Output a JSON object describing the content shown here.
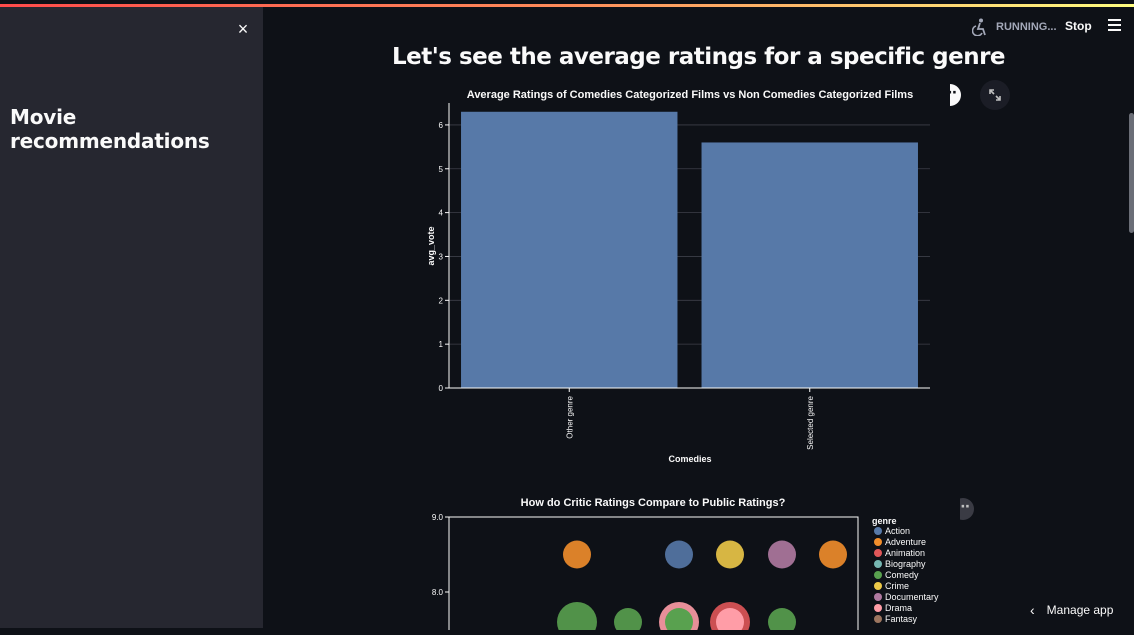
{
  "sidebar": {
    "title": "Movie recommendations",
    "close_label": "×"
  },
  "header": {
    "status": "RUNNING...",
    "stop_label": "Stop"
  },
  "main": {
    "title": "Let's see the average ratings for a specific genre"
  },
  "manage_app": {
    "label": "Manage app",
    "chevron": "‹"
  },
  "icons": {
    "running": "accessibility-running-icon",
    "menu": "hamburger-menu-icon",
    "more": "more-options-icon",
    "expand": "fullscreen-icon"
  },
  "colors": {
    "accent_stripe_start": "#ff4b4b",
    "accent_stripe_end": "#fffd80",
    "bar_color": "#5779a8",
    "sidebar_bg": "#262730",
    "main_bg": "#0e1117"
  },
  "chart_data": [
    {
      "type": "bar",
      "title": "Average Ratings of Comedies Categorized Films vs Non Comedies Categorized Films",
      "xlabel": "Comedies",
      "ylabel": "avg_vote",
      "categories": [
        "Other genre",
        "Selected genre"
      ],
      "values": [
        6.3,
        5.6
      ],
      "ylim": [
        0,
        6.5
      ],
      "yticks": [
        "0",
        "1",
        "2",
        "3",
        "4",
        "5",
        "6"
      ],
      "grid": true
    },
    {
      "type": "scatter",
      "title": "How do Critic Ratings Compare to Public Ratings?",
      "yticks": [
        "9.0",
        "8.0"
      ],
      "legend": {
        "title": "genre",
        "placement": "right",
        "entries": [
          {
            "name": "Action",
            "color": "#5779a8"
          },
          {
            "name": "Adventure",
            "color": "#f28e2b"
          },
          {
            "name": "Animation",
            "color": "#e15759"
          },
          {
            "name": "Biography",
            "color": "#76b7b2"
          },
          {
            "name": "Comedy",
            "color": "#59a14f"
          },
          {
            "name": "Crime",
            "color": "#edc948"
          },
          {
            "name": "Documentary",
            "color": "#b07aa1"
          },
          {
            "name": "Drama",
            "color": "#ff9da7"
          },
          {
            "name": "Fantasy",
            "color": "#9c755f"
          }
        ]
      },
      "points": [
        {
          "genre": "Adventure",
          "y": 8.5
        },
        {
          "genre": "Action",
          "y": 8.5
        },
        {
          "genre": "Crime",
          "y": 8.5
        },
        {
          "genre": "Documentary",
          "y": 8.5
        },
        {
          "genre": "Adventure",
          "y": 8.5
        },
        {
          "genre": "Comedy",
          "y": 7.6
        },
        {
          "genre": "Comedy",
          "y": 7.6
        },
        {
          "genre": "Drama",
          "y": 7.6
        },
        {
          "genre": "Animation",
          "y": 7.6
        },
        {
          "genre": "Comedy",
          "y": 7.6
        }
      ]
    }
  ]
}
